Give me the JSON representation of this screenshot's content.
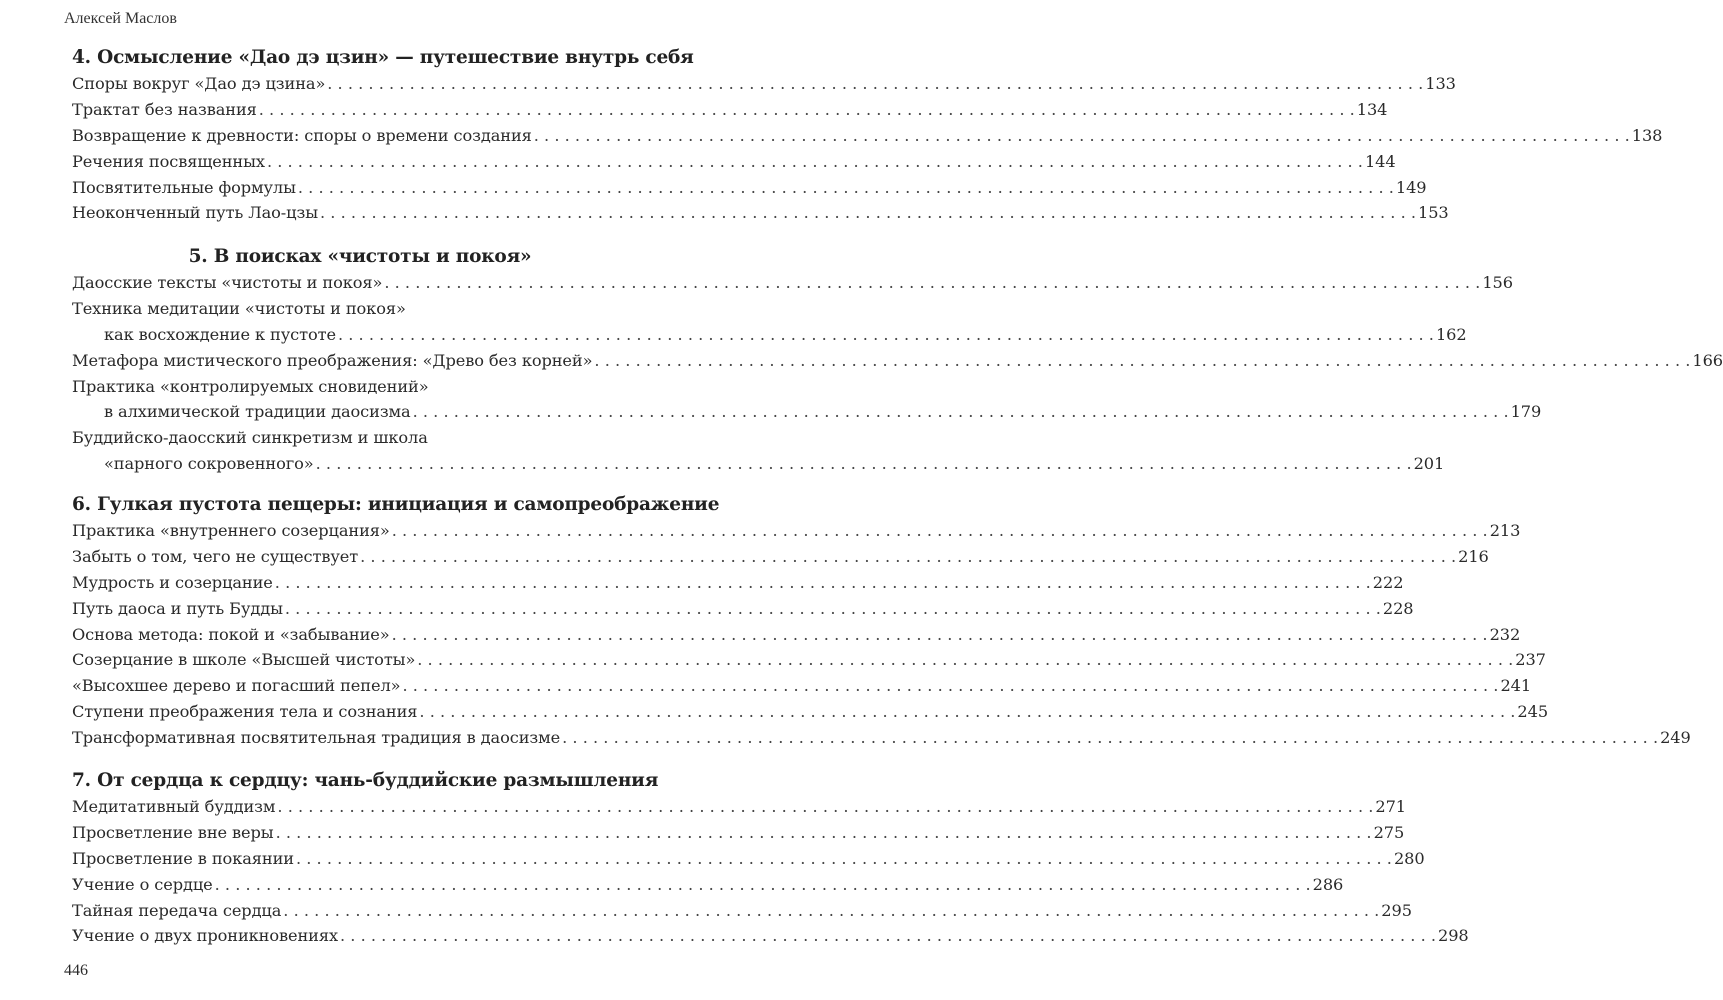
{
  "running_head": "Алексей Маслов",
  "page_number": "446",
  "sections": [
    {
      "title": "4. Осмысление «Дао дэ цзин» — путешествие внутрь себя",
      "entries": [
        {
          "lines": [
            "Споры вокруг «Дао дэ цзина»"
          ],
          "page": "133"
        },
        {
          "lines": [
            "Трактат без названия"
          ],
          "page": "134"
        },
        {
          "lines": [
            "Возвращение к древности: споры о времени создания"
          ],
          "page": "138"
        },
        {
          "lines": [
            "Речения посвященных"
          ],
          "page": "144"
        },
        {
          "lines": [
            "Посвятительные формулы"
          ],
          "page": "149"
        },
        {
          "lines": [
            "Неоконченный путь Лао-цзы"
          ],
          "page": "153"
        }
      ]
    },
    {
      "title": "5. В поисках «чистоты и покоя»",
      "entries": [
        {
          "lines": [
            "Даосские тексты «чистоты и покоя»"
          ],
          "page": "156"
        },
        {
          "lines": [
            "Техника медитации «чистоты и покоя»",
            "как восхождение к пустоте"
          ],
          "page": "162"
        },
        {
          "lines": [
            "Метафора мистического преображения: «Древо без корней»"
          ],
          "page": "166"
        },
        {
          "lines": [
            "Практика «контролируемых сновидений»",
            "в алхимической традиции даосизма"
          ],
          "page": "179"
        },
        {
          "lines": [
            "Буддийско-даосский синкретизм и школа",
            "«парного сокровенного»"
          ],
          "page": "201"
        }
      ]
    },
    {
      "title": "6. Гулкая пустота пещеры: инициация и самопреображение",
      "entries": [
        {
          "lines": [
            "Практика «внутреннего созерцания»"
          ],
          "page": "213"
        },
        {
          "lines": [
            "Забыть о том, чего не существует"
          ],
          "page": "216"
        },
        {
          "lines": [
            "Мудрость и созерцание"
          ],
          "page": "222"
        },
        {
          "lines": [
            "Путь даоса и путь Будды"
          ],
          "page": "228"
        },
        {
          "lines": [
            "Основа метода: покой и «забывание»"
          ],
          "page": "232"
        },
        {
          "lines": [
            "Созерцание в школе «Высшей чистоты»"
          ],
          "page": "237"
        },
        {
          "lines": [
            "«Высохшее дерево и погасший пепел»"
          ],
          "page": "241"
        },
        {
          "lines": [
            "Ступени преображения тела и сознания"
          ],
          "page": "245"
        },
        {
          "lines": [
            "Трансформативная посвятительная традиция в даосизме"
          ],
          "page": "249"
        }
      ]
    },
    {
      "title": "7. От сердца к сердцу: чань-буддийские размышления",
      "entries": [
        {
          "lines": [
            "Медитативный буддизм"
          ],
          "page": "271"
        },
        {
          "lines": [
            "Просветление вне веры"
          ],
          "page": "275"
        },
        {
          "lines": [
            "Просветление в покаянии"
          ],
          "page": "280"
        },
        {
          "lines": [
            "Учение о сердце"
          ],
          "page": "286"
        },
        {
          "lines": [
            "Тайная передача сердца"
          ],
          "page": "295"
        },
        {
          "lines": [
            "Учение о двух проникновениях"
          ],
          "page": "298"
        }
      ]
    }
  ]
}
